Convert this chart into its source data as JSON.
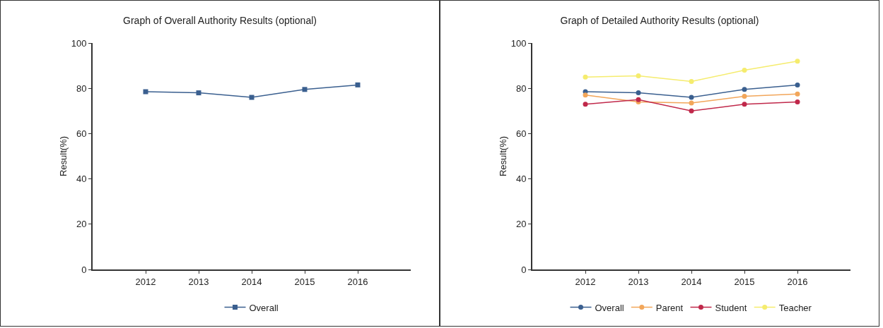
{
  "chart_data": [
    {
      "type": "line",
      "title": "Graph of Overall Authority Results (optional)",
      "ylabel": "Result(%)",
      "categories": [
        "2012",
        "2013",
        "2014",
        "2015",
        "2016"
      ],
      "ylim": [
        0,
        100
      ],
      "yticks": [
        0,
        20,
        40,
        60,
        80,
        100
      ],
      "grid": false,
      "legend": "bottom",
      "marker": "square",
      "series": [
        {
          "name": "Overall",
          "color": "#3a5f8f",
          "values": [
            78.5,
            78,
            76,
            79.5,
            81.5
          ]
        }
      ]
    },
    {
      "type": "line",
      "title": "Graph of Detailed Authority Results (optional)",
      "ylabel": "Result(%)",
      "categories": [
        "2012",
        "2013",
        "2014",
        "2015",
        "2016"
      ],
      "ylim": [
        0,
        100
      ],
      "yticks": [
        0,
        20,
        40,
        60,
        80,
        100
      ],
      "grid": false,
      "legend": "bottom",
      "marker": "circle",
      "series": [
        {
          "name": "Overall",
          "color": "#3a5f8f",
          "values": [
            78.5,
            78,
            76,
            79.5,
            81.5
          ]
        },
        {
          "name": "Parent",
          "color": "#f2a65a",
          "values": [
            77,
            74,
            73.5,
            76.5,
            77.5
          ]
        },
        {
          "name": "Student",
          "color": "#c0284a",
          "values": [
            73,
            75,
            70,
            73,
            74
          ]
        },
        {
          "name": "Teacher",
          "color": "#f5ec6e",
          "values": [
            85,
            85.5,
            83,
            88,
            92
          ]
        }
      ]
    }
  ]
}
